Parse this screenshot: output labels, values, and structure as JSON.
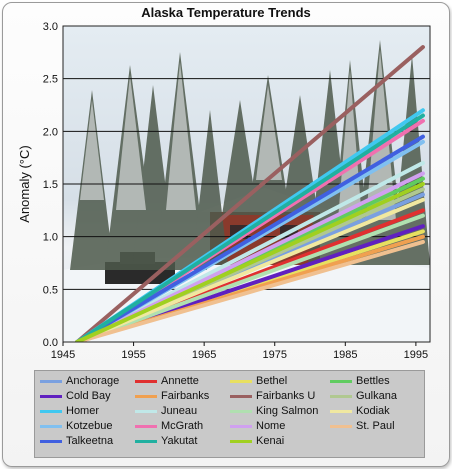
{
  "chart_data": {
    "type": "line",
    "title": "Alaska Temperature Trends",
    "xlabel": "",
    "ylabel": "Anomaly (°C)",
    "xlim": [
      1945,
      1997
    ],
    "ylim": [
      0.0,
      3.0
    ],
    "xticks": [
      1945,
      1955,
      1965,
      1975,
      1985,
      1995
    ],
    "yticks": [
      0.0,
      0.5,
      1.0,
      1.5,
      2.0,
      2.5,
      3.0
    ],
    "ytick_labels": [
      "0.0",
      "0.5",
      "1.0",
      "1.5",
      "2.0",
      "2.5",
      "3.0"
    ],
    "grid": "horizontal",
    "legend_position": "bottom",
    "background": "photo of snow-covered spruce trees and a red house",
    "series": [
      {
        "name": "Anchorage",
        "color": "#7aa0e0",
        "x": [
          1947,
          1996
        ],
        "y": [
          0.0,
          1.4
        ]
      },
      {
        "name": "Annette",
        "color": "#e03030",
        "x": [
          1947,
          1996
        ],
        "y": [
          0.0,
          1.25
        ]
      },
      {
        "name": "Bethel",
        "color": "#e8e060",
        "x": [
          1947,
          1996
        ],
        "y": [
          0.0,
          1.05
        ]
      },
      {
        "name": "Bettles",
        "color": "#60cc60",
        "x": [
          1947,
          1996
        ],
        "y": [
          0.0,
          1.55
        ]
      },
      {
        "name": "Cold Bay",
        "color": "#6020c0",
        "x": [
          1947,
          1996
        ],
        "y": [
          0.0,
          1.1
        ]
      },
      {
        "name": "Fairbanks",
        "color": "#f0a050",
        "x": [
          1947,
          1996
        ],
        "y": [
          0.0,
          1.0
        ]
      },
      {
        "name": "Fairbanks U",
        "color": "#9a6060",
        "x": [
          1947,
          1996
        ],
        "y": [
          0.0,
          2.8
        ]
      },
      {
        "name": "Gulkana",
        "color": "#b0c890",
        "x": [
          1947,
          1996
        ],
        "y": [
          0.0,
          1.45
        ]
      },
      {
        "name": "Homer",
        "color": "#40c8f0",
        "x": [
          1947,
          1996
        ],
        "y": [
          0.0,
          2.2
        ]
      },
      {
        "name": "Juneau",
        "color": "#c0e8e8",
        "x": [
          1947,
          1996
        ],
        "y": [
          0.0,
          1.7
        ]
      },
      {
        "name": "King Salmon",
        "color": "#b0e0b0",
        "x": [
          1947,
          1996
        ],
        "y": [
          0.0,
          1.2
        ]
      },
      {
        "name": "Kodiak",
        "color": "#f0e8a0",
        "x": [
          1947,
          1996
        ],
        "y": [
          0.0,
          1.35
        ]
      },
      {
        "name": "Kotzebue",
        "color": "#80c0f0",
        "x": [
          1947,
          1996
        ],
        "y": [
          0.0,
          1.9
        ]
      },
      {
        "name": "McGrath",
        "color": "#f070b0",
        "x": [
          1947,
          1996
        ],
        "y": [
          0.0,
          2.1
        ]
      },
      {
        "name": "Nome",
        "color": "#d0a0f0",
        "x": [
          1947,
          1996
        ],
        "y": [
          0.0,
          1.6
        ]
      },
      {
        "name": "St. Paul",
        "color": "#f0c090",
        "x": [
          1947,
          1996
        ],
        "y": [
          0.0,
          0.95
        ]
      },
      {
        "name": "Talkeetna",
        "color": "#4060e0",
        "x": [
          1947,
          1996
        ],
        "y": [
          0.0,
          1.95
        ]
      },
      {
        "name": "Yakutat",
        "color": "#20b0a0",
        "x": [
          1947,
          1996
        ],
        "y": [
          0.0,
          2.15
        ]
      },
      {
        "name": "Kenai",
        "color": "#a0d020",
        "x": [
          1947,
          1996
        ],
        "y": [
          0.0,
          1.5
        ]
      }
    ]
  }
}
